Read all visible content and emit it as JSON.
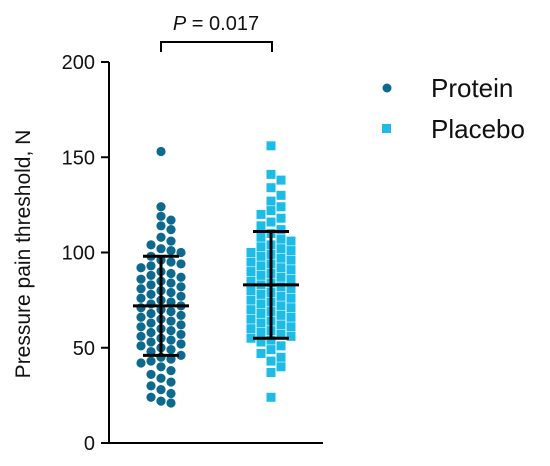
{
  "chart_data": {
    "type": "scatter",
    "title": "",
    "xlabel": "",
    "ylabel": "Pressure pain threshold, N",
    "ylim": [
      0,
      200
    ],
    "yticks": [
      0,
      50,
      100,
      150,
      200
    ],
    "grid": false,
    "legend_position": "top-right",
    "annotation": {
      "p_label": "P",
      "p_text": " = 0.017"
    },
    "series": [
      {
        "name": "Protein",
        "marker": "circle",
        "color": "#0d6a8e",
        "mean": 72,
        "sd_low": 46,
        "sd_high": 98,
        "values": [
          153,
          124,
          119,
          117,
          114,
          112,
          108,
          106,
          104,
          102,
          101,
          100,
          98,
          96,
          95,
          94,
          93,
          92,
          90,
          89,
          88,
          87,
          86,
          85,
          84,
          83,
          82,
          81,
          80,
          79,
          78,
          77,
          76,
          75,
          74,
          73,
          72,
          71,
          70,
          69,
          68,
          67,
          66,
          65,
          64,
          63,
          62,
          61,
          60,
          59,
          58,
          57,
          56,
          55,
          54,
          53,
          52,
          51,
          50,
          49,
          48,
          46,
          45,
          44,
          43,
          42,
          40,
          38,
          36,
          34,
          32,
          30,
          28,
          26,
          24,
          22,
          21
        ]
      },
      {
        "name": "Placebo",
        "marker": "square",
        "color": "#1cbce6",
        "mean": 83,
        "sd_low": 55,
        "sd_high": 111,
        "values": [
          156,
          141,
          138,
          134,
          130,
          127,
          124,
          122,
          120,
          118,
          116,
          114,
          112,
          110,
          108,
          107,
          106,
          104,
          103,
          102,
          101,
          100,
          99,
          98,
          97,
          96,
          95,
          94,
          93,
          92,
          91,
          90,
          89,
          88,
          87,
          86,
          85,
          84,
          83,
          82,
          81,
          80,
          79,
          78,
          77,
          76,
          75,
          74,
          73,
          72,
          71,
          70,
          69,
          68,
          67,
          66,
          65,
          64,
          63,
          62,
          61,
          60,
          59,
          58,
          57,
          56,
          55,
          54,
          53,
          51,
          49,
          47,
          45,
          43,
          40,
          37,
          24
        ]
      }
    ]
  }
}
